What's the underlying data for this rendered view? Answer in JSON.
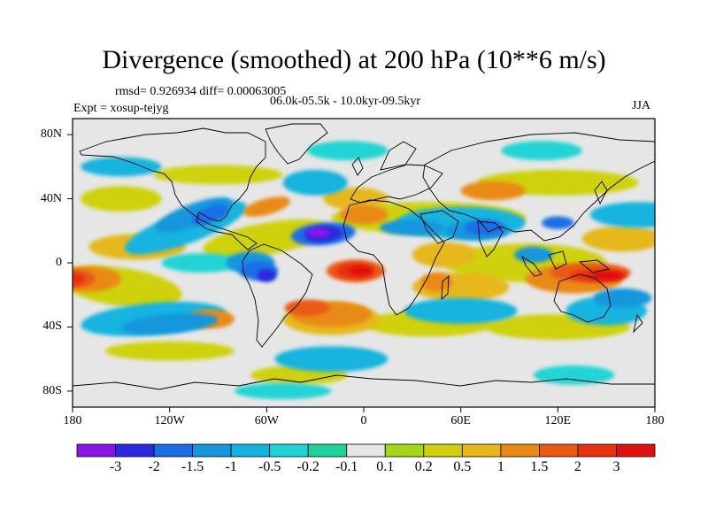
{
  "chart_data": {
    "type": "heatmap",
    "title": "Divergence (smoothed) at 200 hPa (10**6 m/s)",
    "stats": "rmsd= 0.926934 diff= 0.00063005",
    "experiment": "Expt = xosup-tejyg",
    "period": "06.0k-05.5k - 10.0kyr-09.5kyr",
    "season": "JJA",
    "y_ticks": [
      "80N",
      "40N",
      "0",
      "40S",
      "80S"
    ],
    "x_ticks": [
      "180",
      "120W",
      "60W",
      "0",
      "60E",
      "120E",
      "180"
    ],
    "xlim": [
      -180,
      180
    ],
    "ylim": [
      -90,
      90
    ],
    "colorbar": {
      "labels": [
        "-3",
        "-2",
        "-1.5",
        "-1",
        "-0.5",
        "-0.2",
        "-0.1",
        "0.1",
        "0.2",
        "0.5",
        "1",
        "1.5",
        "2",
        "3"
      ],
      "colors": [
        "#8a16e6",
        "#2a2ae0",
        "#1a6ee6",
        "#1596dd",
        "#12b4de",
        "#21d4d4",
        "#1fd19a",
        "#e6e6e6",
        "#a6d61a",
        "#cfd10f",
        "#e6b81a",
        "#ea8a16",
        "#ea5a12",
        "#e8320e",
        "#e11010"
      ]
    },
    "features": [
      {
        "name": "eastern-atlantic-convergence",
        "lon": -25,
        "lat": 18,
        "value": -3
      },
      {
        "name": "eastern-atlantic-divergence",
        "lon": -5,
        "lat": -6,
        "value": 3
      },
      {
        "name": "western-pacific-divergence",
        "lon": 140,
        "lat": -8,
        "value": 3
      },
      {
        "name": "central-pacific-divergence",
        "lon": -180,
        "lat": -10,
        "value": 3
      },
      {
        "name": "south-america-convergence",
        "lon": -65,
        "lat": -5,
        "value": -2
      },
      {
        "name": "north-pacific-convergence",
        "lon": -105,
        "lat": 30,
        "value": -1.5
      },
      {
        "name": "south-atlantic-divergence",
        "lon": -40,
        "lat": -25,
        "value": 1.5
      },
      {
        "name": "indian-ocean-convergence",
        "lon": 75,
        "lat": 20,
        "value": -1.5
      },
      {
        "name": "southern-ocean-convergence",
        "lon": -115,
        "lat": -25,
        "value": -1
      }
    ]
  }
}
